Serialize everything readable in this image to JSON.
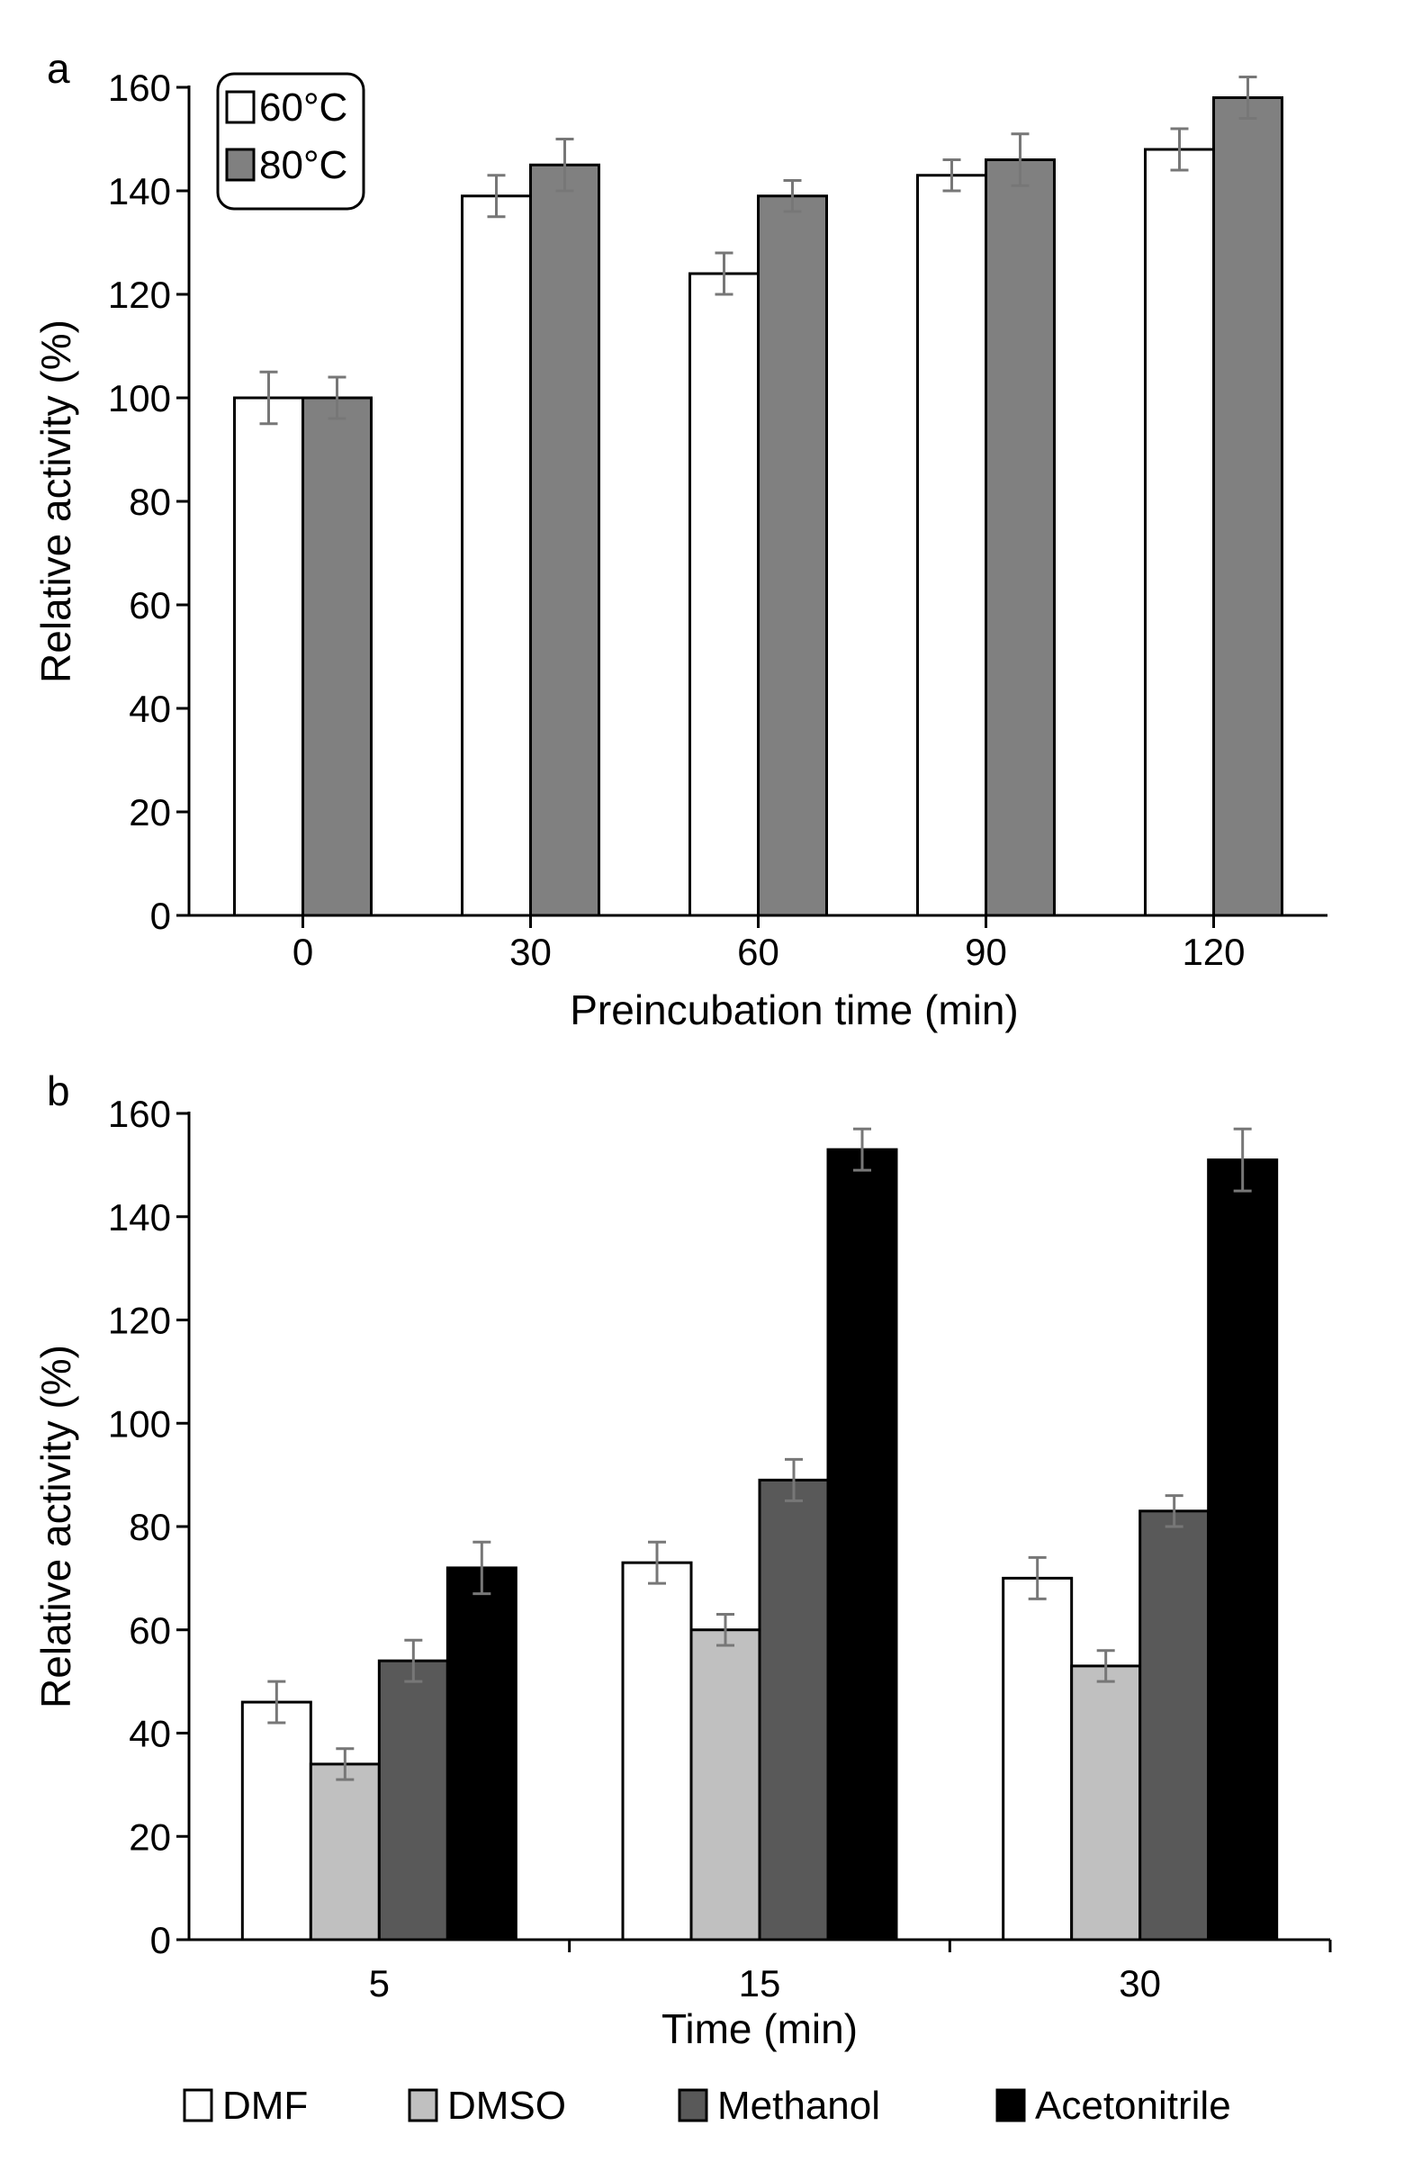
{
  "chart_data": [
    {
      "panel": "a",
      "type": "bar",
      "title": "",
      "xlabel": "Preincubation time (min)",
      "ylabel": "Relative activity (%)",
      "ylim": [
        0,
        160
      ],
      "yticks": [
        0,
        20,
        40,
        60,
        80,
        100,
        120,
        140,
        160
      ],
      "grid": false,
      "legend_position": "top-left",
      "categories": [
        "0",
        "30",
        "60",
        "90",
        "120"
      ],
      "series": [
        {
          "name": "60°C",
          "color": "#ffffff",
          "values": [
            100,
            139,
            124,
            143,
            148
          ],
          "errors": [
            5,
            4,
            4,
            3,
            4
          ]
        },
        {
          "name": "80°C",
          "color": "#808080",
          "values": [
            100,
            145,
            139,
            146,
            158
          ],
          "errors": [
            4,
            5,
            3,
            5,
            4
          ]
        }
      ]
    },
    {
      "panel": "b",
      "type": "bar",
      "title": "",
      "xlabel": "Time (min)",
      "ylabel": "Relative activity (%)",
      "ylim": [
        0,
        160
      ],
      "yticks": [
        0,
        20,
        40,
        60,
        80,
        100,
        120,
        140,
        160
      ],
      "grid": false,
      "legend_position": "bottom",
      "categories": [
        "5",
        "15",
        "30"
      ],
      "series": [
        {
          "name": "DMF",
          "color": "#ffffff",
          "values": [
            46,
            73,
            70
          ],
          "errors": [
            4,
            4,
            4
          ]
        },
        {
          "name": "DMSO",
          "color": "#c0c0c0",
          "values": [
            34,
            60,
            53
          ],
          "errors": [
            3,
            3,
            3
          ]
        },
        {
          "name": "Methanol",
          "color": "#595959",
          "values": [
            54,
            89,
            83
          ],
          "errors": [
            4,
            4,
            3
          ]
        },
        {
          "name": "Acetonitrile",
          "color": "#000000",
          "values": [
            72,
            153,
            151
          ],
          "errors": [
            5,
            4,
            6
          ]
        }
      ]
    }
  ]
}
